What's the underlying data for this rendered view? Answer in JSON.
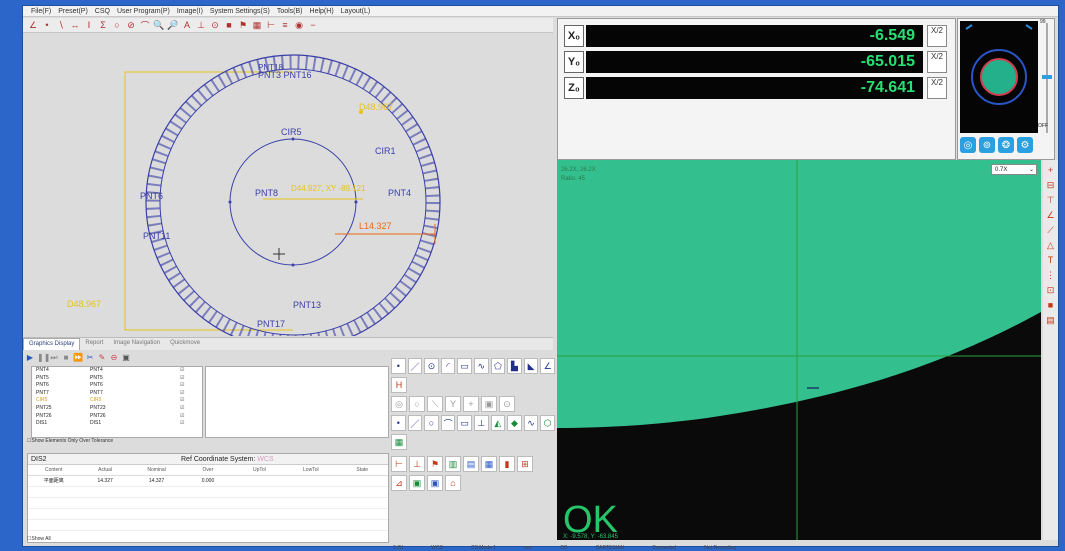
{
  "menu": [
    "File(F)",
    "Preset(P)",
    "CSQ",
    "User Program(P)",
    "Image(I)",
    "System Settings(S)",
    "Tools(B)",
    "Help(H)",
    "Layout(L)"
  ],
  "cad": {
    "labels": {
      "pnt_top_stack": "PNT3 PNT16",
      "pnt_top_stack2": "PNT18",
      "cir5": "CIR5",
      "cir1": "CIR1",
      "pnt_left": "PNT6",
      "pnt11": "PNT11",
      "pnt4": "PNT4",
      "pnt13": "PNT13",
      "pnt17": "PNT17",
      "center_stack": "PNT8",
      "dim_top": "D48.967",
      "dim_center": "D44.927, XY -89.121",
      "dim_l": "L14.327",
      "dim_left": "D48.967"
    }
  },
  "dro": {
    "x_label": "X₀",
    "x_value": "-6.549",
    "y_label": "Y₀",
    "y_value": "-65.015",
    "z_label": "Z₀",
    "z_value": "-74.641",
    "half_label": "X/2"
  },
  "navigator": {
    "slider_top": "99",
    "slider_bottom": "OFF"
  },
  "camera": {
    "info_line1": "26.2X, 26.2X",
    "info_line2": "Ratio: 45",
    "zoom_select": "0.7X",
    "result": "OK",
    "coords": "X: -9.578, Y: -63.845"
  },
  "tabs": [
    "Graphics Display",
    "Report",
    "Image Navigation",
    "Quickmove"
  ],
  "elements": [
    {
      "name": "PNT4",
      "alias": "PNT4"
    },
    {
      "name": "PNT5",
      "alias": "PNT5"
    },
    {
      "name": "PNT6",
      "alias": "PNT6"
    },
    {
      "name": "PNT7",
      "alias": "PNT7"
    },
    {
      "name": "CIR5",
      "alias": "CIR5"
    },
    {
      "name": "PNT25",
      "alias": "PNT23"
    },
    {
      "name": "PNT26",
      "alias": "PNT26"
    },
    {
      "name": "DIS1",
      "alias": "DIS1"
    }
  ],
  "show_tolerance": "Show Elements Only Over Tolerance",
  "report": {
    "name": "DIS2",
    "coord_system": "Ref Coordinate System:",
    "coord_value": "WCS",
    "columns": [
      "Content",
      "Actual",
      "Nominal",
      "Over",
      "UpTol",
      "LowTol",
      "State"
    ],
    "row": {
      "content": "平面距离",
      "actual": "14.327",
      "nominal": "14.327",
      "over": "0.000"
    }
  },
  "show_all": "Show All",
  "status": [
    "0.7X",
    "WCS",
    "CS Mode 1",
    "mm",
    "DD",
    "CARTESIAN",
    "Connected",
    "Not Recording"
  ]
}
